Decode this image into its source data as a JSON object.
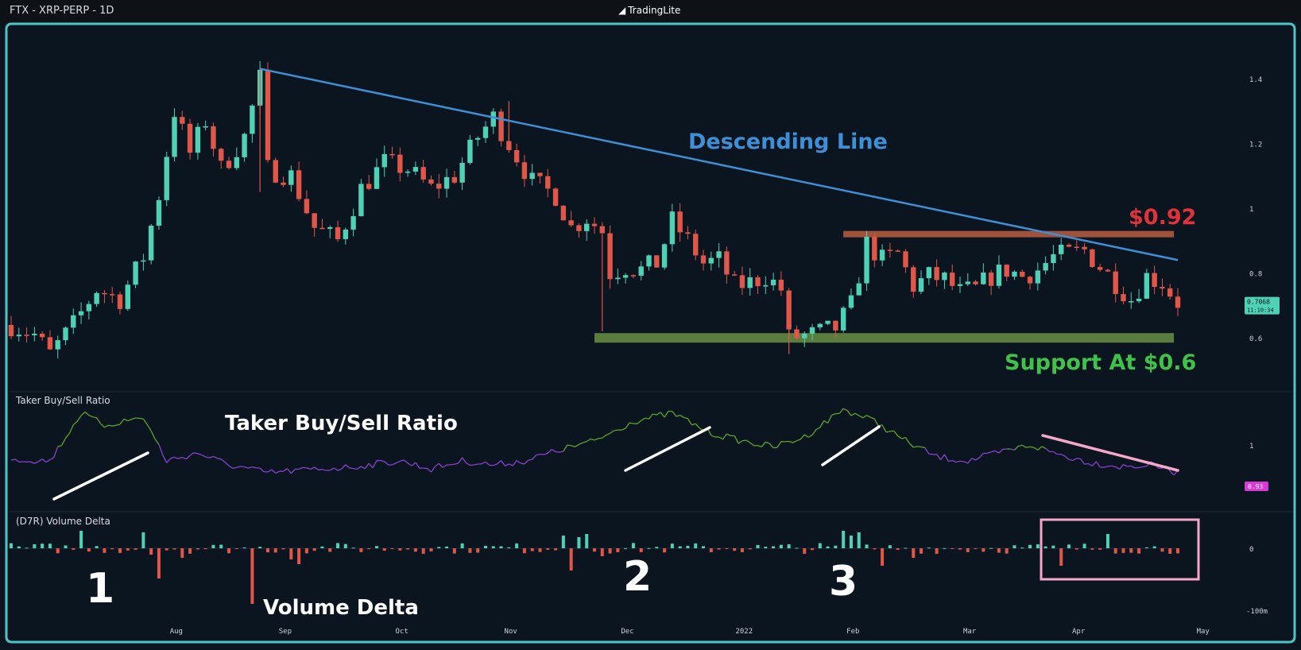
{
  "header": {
    "pair_label": "FTX - XRP-PERP - 1D",
    "brand_prefix": "Trading",
    "brand_suffix": "Lite"
  },
  "colors": {
    "bull": "#4fd1b5",
    "bear": "#e0574a",
    "trendline": "#3f8fd6",
    "resistance_band": "#a0523a",
    "support_band": "#5a7d3e",
    "ratio_high": "#5aa52a",
    "ratio_low": "#8a3fd1",
    "frame_border": "#4bc6c7",
    "highlight_box": "#f4a7c8"
  },
  "annotations": {
    "descending": "Descending Line",
    "resistance": "$0.92",
    "support": "Support At $0.6",
    "ratio_title": "Taker Buy/Sell Ratio",
    "volume_title": "Volume Delta",
    "marker_1": "1",
    "marker_2": "2",
    "marker_3": "3"
  },
  "chart_data": [
    {
      "type": "candlestick",
      "title": "FTX - XRP-PERP - 1D",
      "x_ticks": [
        "Aug",
        "Sep",
        "Oct",
        "Nov",
        "Dec",
        "2022",
        "Feb",
        "Mar",
        "Apr",
        "May"
      ],
      "y_ticks": [
        "1.4",
        "1.2",
        "1",
        "0.8",
        "0.6"
      ],
      "ylim": [
        0.5,
        1.5
      ],
      "last_price": "0.7068",
      "countdown": "11:10:34",
      "close_path": [
        {
          "x": 0,
          "y": 0.64
        },
        {
          "x": 3,
          "y": 0.61
        },
        {
          "x": 5,
          "y": 0.55
        },
        {
          "x": 8,
          "y": 0.64
        },
        {
          "x": 11,
          "y": 0.75
        },
        {
          "x": 14,
          "y": 0.72
        },
        {
          "x": 17,
          "y": 0.85
        },
        {
          "x": 19,
          "y": 1.04
        },
        {
          "x": 21,
          "y": 1.3
        },
        {
          "x": 23,
          "y": 1.17
        },
        {
          "x": 25,
          "y": 1.27
        },
        {
          "x": 27,
          "y": 1.12
        },
        {
          "x": 30,
          "y": 1.22
        },
        {
          "x": 32,
          "y": 1.4
        },
        {
          "x": 33,
          "y": 1.12
        },
        {
          "x": 36,
          "y": 1.1
        },
        {
          "x": 39,
          "y": 0.94
        },
        {
          "x": 42,
          "y": 0.9
        },
        {
          "x": 45,
          "y": 1.06
        },
        {
          "x": 48,
          "y": 1.14
        },
        {
          "x": 51,
          "y": 1.12
        },
        {
          "x": 54,
          "y": 1.06
        },
        {
          "x": 57,
          "y": 1.1
        },
        {
          "x": 60,
          "y": 1.22
        },
        {
          "x": 62,
          "y": 1.28
        },
        {
          "x": 64,
          "y": 1.2
        },
        {
          "x": 67,
          "y": 1.08
        },
        {
          "x": 70,
          "y": 1.04
        },
        {
          "x": 72,
          "y": 0.94
        },
        {
          "x": 74,
          "y": 0.97
        },
        {
          "x": 76,
          "y": 0.93
        },
        {
          "x": 77,
          "y": 0.8
        },
        {
          "x": 79,
          "y": 0.82
        },
        {
          "x": 81,
          "y": 0.81
        },
        {
          "x": 83,
          "y": 0.83
        },
        {
          "x": 85,
          "y": 0.96
        },
        {
          "x": 87,
          "y": 0.9
        },
        {
          "x": 89,
          "y": 0.83
        },
        {
          "x": 91,
          "y": 0.84
        },
        {
          "x": 93,
          "y": 0.76
        },
        {
          "x": 95,
          "y": 0.77
        },
        {
          "x": 97,
          "y": 0.79
        },
        {
          "x": 99,
          "y": 0.75
        },
        {
          "x": 100,
          "y": 0.6
        },
        {
          "x": 103,
          "y": 0.61
        },
        {
          "x": 106,
          "y": 0.63
        },
        {
          "x": 108,
          "y": 0.7
        },
        {
          "x": 110,
          "y": 0.89
        },
        {
          "x": 112,
          "y": 0.84
        },
        {
          "x": 114,
          "y": 0.86
        },
        {
          "x": 116,
          "y": 0.76
        },
        {
          "x": 118,
          "y": 0.79
        },
        {
          "x": 120,
          "y": 0.78
        },
        {
          "x": 122,
          "y": 0.74
        },
        {
          "x": 124,
          "y": 0.75
        },
        {
          "x": 126,
          "y": 0.79
        },
        {
          "x": 128,
          "y": 0.81
        },
        {
          "x": 130,
          "y": 0.79
        },
        {
          "x": 132,
          "y": 0.81
        },
        {
          "x": 134,
          "y": 0.85
        },
        {
          "x": 136,
          "y": 0.86
        },
        {
          "x": 138,
          "y": 0.87
        },
        {
          "x": 140,
          "y": 0.82
        },
        {
          "x": 142,
          "y": 0.77
        },
        {
          "x": 144,
          "y": 0.72
        },
        {
          "x": 146,
          "y": 0.79
        },
        {
          "x": 148,
          "y": 0.77
        },
        {
          "x": 150,
          "y": 0.71
        }
      ],
      "descending_line": [
        {
          "x": 32,
          "y": 1.43
        },
        {
          "x": 150,
          "y": 0.84
        }
      ],
      "resistance_level": 0.92,
      "support_level": 0.6
    },
    {
      "type": "line",
      "title": "Taker Buy/Sell Ratio",
      "y_ticks": [
        "1"
      ],
      "last_value": "0.93"
    },
    {
      "type": "bar",
      "title": "(D7R) Volume Delta",
      "y_ticks": [
        "0",
        "-100m"
      ]
    }
  ]
}
